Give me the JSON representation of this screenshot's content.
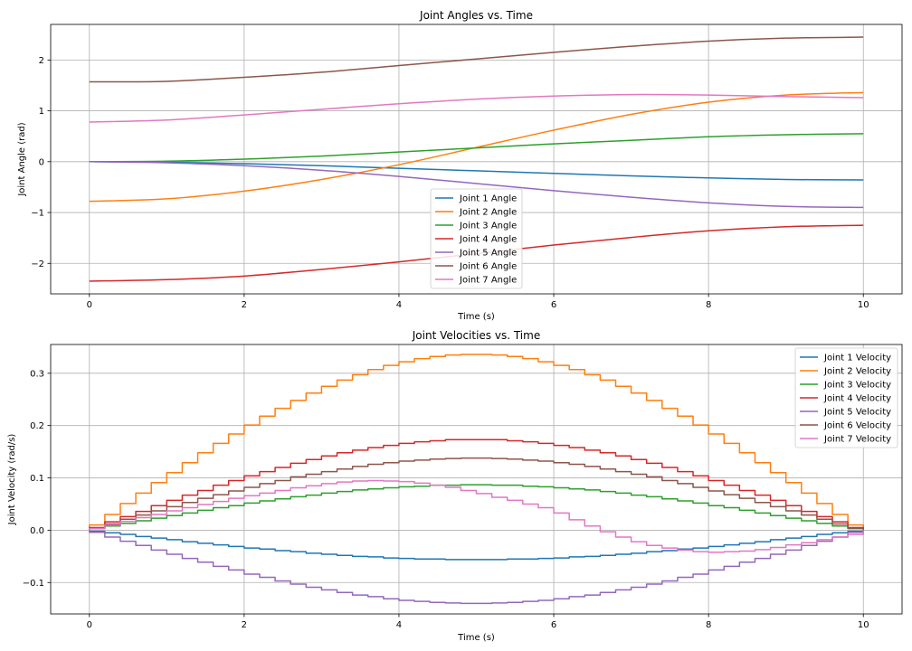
{
  "chart_data": [
    {
      "type": "line",
      "title": "Joint Angles vs. Time",
      "xlabel": "Time (s)",
      "ylabel": "Joint Angle (rad)",
      "xlim": [
        -0.5,
        10.5
      ],
      "ylim": [
        -2.6,
        2.7
      ],
      "xticks": [
        0,
        2,
        4,
        6,
        8,
        10
      ],
      "yticks": [
        -2,
        -1,
        0,
        1,
        2
      ],
      "grid": true,
      "legend_position": "lower-center",
      "x": [
        0,
        1,
        2,
        3,
        4,
        5,
        6,
        7,
        8,
        9,
        10
      ],
      "series": [
        {
          "name": "Joint 1 Angle",
          "color": "#1f77b4",
          "values": [
            0.0,
            -0.01,
            -0.04,
            -0.08,
            -0.13,
            -0.18,
            -0.23,
            -0.28,
            -0.32,
            -0.35,
            -0.36
          ]
        },
        {
          "name": "Joint 2 Angle",
          "color": "#ff7f0e",
          "values": [
            -0.78,
            -0.73,
            -0.58,
            -0.35,
            -0.06,
            0.28,
            0.62,
            0.93,
            1.17,
            1.31,
            1.36
          ]
        },
        {
          "name": "Joint 3 Angle",
          "color": "#2ca02c",
          "values": [
            0.0,
            0.01,
            0.05,
            0.11,
            0.19,
            0.27,
            0.35,
            0.42,
            0.49,
            0.53,
            0.55
          ]
        },
        {
          "name": "Joint 4 Angle",
          "color": "#d62728",
          "values": [
            -2.35,
            -2.32,
            -2.25,
            -2.12,
            -1.97,
            -1.81,
            -1.64,
            -1.49,
            -1.36,
            -1.28,
            -1.25
          ]
        },
        {
          "name": "Joint 5 Angle",
          "color": "#9467bd",
          "values": [
            0.0,
            -0.02,
            -0.08,
            -0.17,
            -0.29,
            -0.43,
            -0.57,
            -0.7,
            -0.81,
            -0.88,
            -0.9
          ]
        },
        {
          "name": "Joint 6 Angle",
          "color": "#8c564b",
          "values": [
            1.57,
            1.58,
            1.66,
            1.76,
            1.89,
            2.02,
            2.15,
            2.27,
            2.37,
            2.43,
            2.45
          ]
        },
        {
          "name": "Joint 7 Angle",
          "color": "#e377c2",
          "values": [
            0.78,
            0.82,
            0.92,
            1.03,
            1.14,
            1.23,
            1.29,
            1.32,
            1.31,
            1.28,
            1.26
          ]
        }
      ]
    },
    {
      "type": "line",
      "title": "Joint Velocities vs. Time",
      "xlabel": "Time (s)",
      "ylabel": "Joint Velocity (rad/s)",
      "xlim": [
        -0.5,
        10.5
      ],
      "ylim": [
        -0.16,
        0.355
      ],
      "xticks": [
        0,
        2,
        4,
        6,
        8,
        10
      ],
      "yticks": [
        -0.1,
        0.0,
        0.1,
        0.2,
        0.3
      ],
      "ytick_labels": [
        "−0.1",
        "0.0",
        "0.1",
        "0.2",
        "0.3"
      ],
      "grid": true,
      "legend_position": "top-right",
      "step_size": 0.2,
      "series": [
        {
          "name": "Joint 1 Velocity",
          "color": "#1f77b4",
          "peak": -0.055
        },
        {
          "name": "Joint 2 Velocity",
          "color": "#ff7f0e",
          "peak": 0.33
        },
        {
          "name": "Joint 3 Velocity",
          "color": "#2ca02c",
          "peak": 0.085
        },
        {
          "name": "Joint 4 Velocity",
          "color": "#d62728",
          "peak": 0.17
        },
        {
          "name": "Joint 5 Velocity",
          "color": "#9467bd",
          "peak": -0.137
        },
        {
          "name": "Joint 6 Velocity",
          "color": "#8c564b",
          "peak": 0.135
        },
        {
          "name": "Joint 7 Velocity",
          "color": "#e377c2",
          "peak": 0.108,
          "profile": "sine-shifted",
          "min": -0.038
        }
      ]
    }
  ]
}
